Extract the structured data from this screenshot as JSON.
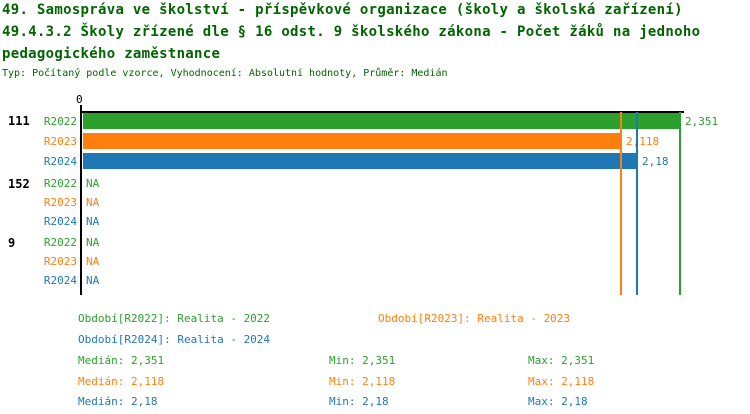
{
  "title": {
    "line1": "49. Samospráva ve školství - příspěvkové organizace (školy a školská zařízení)",
    "line2": "49.4.3.2 Školy zřízené dle § 16 odst. 9 školského zákona - Počet žáků na jednoho",
    "line3": "pedagogického zaměstnance",
    "subtitle": "Typ: Počítaný podle vzorce, Vyhodnocení: Absolutní hodnoty, Průměr: Medián"
  },
  "colors": {
    "title_text": "#006400",
    "axis": "#000000",
    "group_label": "#000000",
    "series_2022": "#2ca02c",
    "series_2023": "#ff7f0e",
    "series_2024": "#1f77b4"
  },
  "chart_data": {
    "type": "bar",
    "orientation": "horizontal",
    "x_axis": {
      "tick_labels": [
        "0"
      ],
      "range": [
        0,
        2.6
      ],
      "grid": false
    },
    "series_names": [
      "R2022",
      "R2023",
      "R2024"
    ],
    "na_text": "NA",
    "groups": [
      {
        "label": "111",
        "bars": [
          {
            "series": "R2022",
            "value": 2.351,
            "value_label": "2,351",
            "color": "#2ca02c"
          },
          {
            "series": "R2023",
            "value": 2.118,
            "value_label": "2,118",
            "color": "#ff7f0e"
          },
          {
            "series": "R2024",
            "value": 2.18,
            "value_label": "2,18",
            "color": "#1f77b4"
          }
        ]
      },
      {
        "label": "152",
        "bars": [
          {
            "series": "R2022",
            "value": null,
            "value_label": "NA",
            "color": "#2ca02c"
          },
          {
            "series": "R2023",
            "value": null,
            "value_label": "NA",
            "color": "#ff7f0e"
          },
          {
            "series": "R2024",
            "value": null,
            "value_label": "NA",
            "color": "#1f77b4"
          }
        ]
      },
      {
        "label": "9",
        "bars": [
          {
            "series": "R2022",
            "value": null,
            "value_label": "NA",
            "color": "#2ca02c"
          },
          {
            "series": "R2023",
            "value": null,
            "value_label": "NA",
            "color": "#ff7f0e"
          },
          {
            "series": "R2024",
            "value": null,
            "value_label": "NA",
            "color": "#1f77b4"
          }
        ]
      }
    ],
    "median_lines": [
      {
        "value": 2.351,
        "color": "#2ca02c"
      },
      {
        "value": 2.118,
        "color": "#ff7f0e"
      },
      {
        "value": 2.18,
        "color": "#1f77b4"
      }
    ]
  },
  "legend": {
    "periods": [
      {
        "label": "Období[R2022]: Realita - 2022",
        "color": "#2ca02c"
      },
      {
        "label": "Období[R2023]: Realita - 2023",
        "color": "#ff7f0e"
      },
      {
        "label": "Období[R2024]: Realita - 2024",
        "color": "#1f77b4"
      }
    ],
    "stats": [
      {
        "median": "Medián: 2,351",
        "min": "Min: 2,351",
        "max": "Max: 2,351",
        "color": "#2ca02c"
      },
      {
        "median": "Medián: 2,118",
        "min": "Min: 2,118",
        "max": "Max: 2,118",
        "color": "#ff7f0e"
      },
      {
        "median": "Medián: 2,18",
        "min": "Min: 2,18",
        "max": "Max: 2,18",
        "color": "#1f77b4"
      }
    ]
  }
}
